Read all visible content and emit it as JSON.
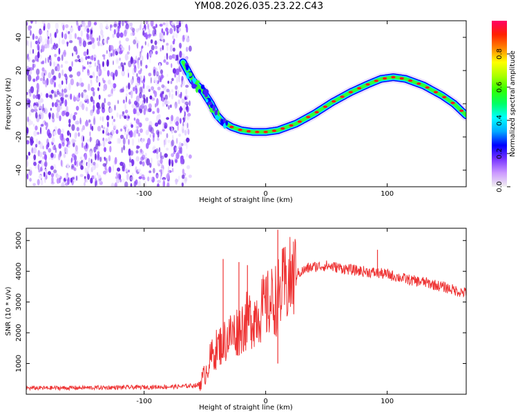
{
  "title": "YM08.2026.035.23.22.C43",
  "colors": {
    "line": "#ee3333",
    "scatter": "#7a2fe0",
    "colorbar_stops": [
      "#f0f0f0",
      "#cc99ff",
      "#7733ff",
      "#0000ff",
      "#00aaff",
      "#00ffff",
      "#00ff66",
      "#33ff00",
      "#aaff00",
      "#ffff00",
      "#ff8800",
      "#ff2200",
      "#ff0066"
    ]
  },
  "chart_data": [
    {
      "type": "heatmap",
      "title": "",
      "xlabel": "Height of straight line (km)",
      "ylabel": "Frequency (Hz)",
      "xlim": [
        -197,
        165
      ],
      "ylim": [
        -50,
        50
      ],
      "xticks": [
        -100,
        0,
        100
      ],
      "xtick_labels": [
        "-100",
        "0",
        "100"
      ],
      "yticks": [
        -40,
        -20,
        0,
        20,
        40
      ],
      "ytick_labels": [
        "-40",
        "-20",
        "0",
        "20",
        "40"
      ],
      "noise_region_x": [
        -197,
        -62
      ],
      "trace": {
        "name": "dominant frequency",
        "x": [
          -68,
          -60,
          -52,
          -45,
          -40,
          -35,
          -28,
          -20,
          -10,
          0,
          10,
          25,
          40,
          55,
          70,
          85,
          95,
          105,
          115,
          130,
          145,
          155,
          165
        ],
        "y": [
          25,
          14,
          8,
          0,
          -7,
          -11,
          -14,
          -16,
          -17,
          -17,
          -16,
          -12,
          -6,
          1,
          7,
          12,
          15,
          16,
          15,
          11,
          5,
          0,
          -7
        ]
      },
      "colorbar": {
        "label": "Normalized spectral amplitude",
        "range": [
          0.0,
          1.0
        ],
        "ticks": [
          0.0,
          0.2,
          0.4,
          0.6,
          0.8
        ],
        "tick_labels": [
          "0.0",
          "0.2",
          "0.4",
          "0.6",
          "0.8"
        ]
      }
    },
    {
      "type": "line",
      "title": "",
      "xlabel": "Height of straight line (km)",
      "ylabel": "SNR (10 * v/v)",
      "xlim": [
        -197,
        165
      ],
      "ylim": [
        0,
        5400
      ],
      "xticks": [
        -100,
        0,
        100
      ],
      "xtick_labels": [
        "-100",
        "0",
        "100"
      ],
      "yticks": [
        1000,
        2000,
        3000,
        4000,
        5000
      ],
      "ytick_labels": [
        "1000",
        "2000",
        "3000",
        "4000",
        "5000"
      ],
      "series": [
        {
          "name": "SNR",
          "x": [
            -197,
            -150,
            -100,
            -70,
            -55,
            -50,
            -45,
            -40,
            -35,
            -30,
            -25,
            -20,
            -15,
            -10,
            -5,
            0,
            5,
            10,
            15,
            20,
            25,
            30,
            35,
            40,
            50,
            60,
            70,
            80,
            90,
            100,
            110,
            120,
            130,
            140,
            150,
            160,
            165
          ],
          "values": [
            200,
            210,
            230,
            250,
            300,
            650,
            1200,
            1500,
            1700,
            1900,
            2000,
            2200,
            2400,
            2500,
            2700,
            2850,
            3000,
            3150,
            3500,
            3700,
            3900,
            4000,
            4100,
            4150,
            4180,
            4120,
            4050,
            4000,
            3950,
            3900,
            3800,
            3700,
            3650,
            3550,
            3450,
            3330,
            3300
          ]
        }
      ],
      "spikes": [
        {
          "x": -35,
          "value": 4400
        },
        {
          "x": -22,
          "value": 4300
        },
        {
          "x": -15,
          "value": 4200
        },
        {
          "x": 10,
          "value": 5350
        },
        {
          "x": 10,
          "value": 1000
        },
        {
          "x": 92,
          "value": 4700
        }
      ]
    }
  ]
}
